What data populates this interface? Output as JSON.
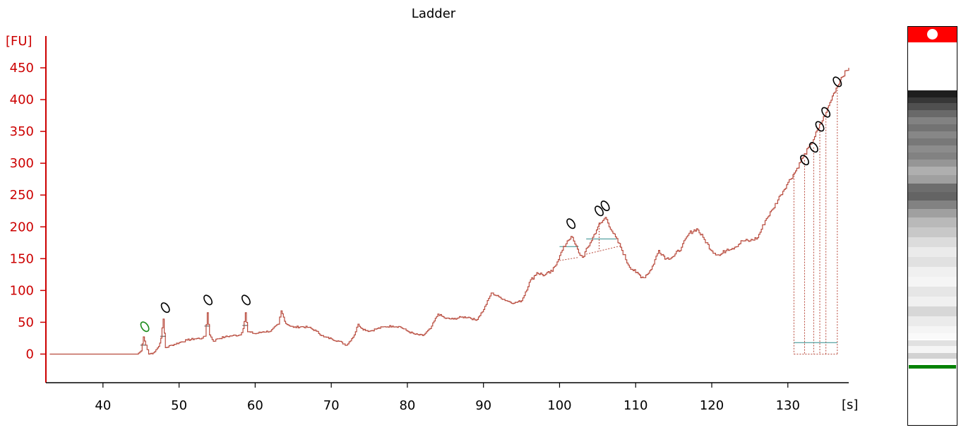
{
  "chart_data": {
    "type": "line",
    "title": "Ladder",
    "ylabel": "[FU]",
    "xlabel": "[s]",
    "xlim": [
      32.5,
      138
    ],
    "ylim": [
      -45,
      500
    ],
    "yticks": [
      0,
      50,
      100,
      150,
      200,
      250,
      300,
      350,
      400,
      450
    ],
    "xticks": [
      40,
      50,
      60,
      70,
      80,
      90,
      100,
      110,
      120,
      130
    ],
    "trace": [
      [
        33,
        0
      ],
      [
        44.5,
        0
      ],
      [
        45,
        5
      ],
      [
        45.3,
        27
      ],
      [
        45.6,
        14
      ],
      [
        46,
        0
      ],
      [
        46.6,
        2
      ],
      [
        47.3,
        12
      ],
      [
        47.6,
        25
      ],
      [
        47.9,
        55
      ],
      [
        48.2,
        10
      ],
      [
        49,
        14
      ],
      [
        50,
        18
      ],
      [
        51,
        22
      ],
      [
        52,
        24
      ],
      [
        53,
        25
      ],
      [
        53.4,
        28
      ],
      [
        53.7,
        65
      ],
      [
        54,
        30
      ],
      [
        54.5,
        20
      ],
      [
        55,
        24
      ],
      [
        56,
        27
      ],
      [
        57,
        29
      ],
      [
        58,
        30
      ],
      [
        58.4,
        40
      ],
      [
        58.7,
        65
      ],
      [
        59,
        35
      ],
      [
        60,
        32
      ],
      [
        61,
        35
      ],
      [
        62,
        36
      ],
      [
        63,
        47
      ],
      [
        63.4,
        68
      ],
      [
        64,
        48
      ],
      [
        65,
        42
      ],
      [
        66,
        43
      ],
      [
        67,
        42
      ],
      [
        68,
        36
      ],
      [
        69,
        27
      ],
      [
        70,
        24
      ],
      [
        71,
        20
      ],
      [
        72,
        14
      ],
      [
        73,
        30
      ],
      [
        73.5,
        47
      ],
      [
        74,
        40
      ],
      [
        75,
        36
      ],
      [
        76,
        40
      ],
      [
        77,
        43
      ],
      [
        78,
        44
      ],
      [
        79,
        43
      ],
      [
        80,
        36
      ],
      [
        81,
        31
      ],
      [
        82,
        29
      ],
      [
        83,
        40
      ],
      [
        84,
        63
      ],
      [
        85,
        56
      ],
      [
        86,
        55
      ],
      [
        87,
        58
      ],
      [
        88,
        58
      ],
      [
        89,
        53
      ],
      [
        90,
        70
      ],
      [
        91,
        96
      ],
      [
        92,
        90
      ],
      [
        93,
        84
      ],
      [
        94,
        80
      ],
      [
        95,
        84
      ],
      [
        96,
        113
      ],
      [
        97,
        128
      ],
      [
        98,
        124
      ],
      [
        99,
        130
      ],
      [
        100,
        155
      ],
      [
        101,
        178
      ],
      [
        101.5,
        185
      ],
      [
        102,
        173
      ],
      [
        102.5,
        159
      ],
      [
        103,
        152
      ],
      [
        104,
        175
      ],
      [
        105,
        200
      ],
      [
        105.5,
        207
      ],
      [
        106,
        215
      ],
      [
        107,
        190
      ],
      [
        108,
        168
      ],
      [
        109,
        140
      ],
      [
        110,
        128
      ],
      [
        111,
        120
      ],
      [
        112,
        133
      ],
      [
        113,
        163
      ],
      [
        114,
        150
      ],
      [
        115,
        154
      ],
      [
        116,
        168
      ],
      [
        117,
        190
      ],
      [
        118,
        197
      ],
      [
        119,
        180
      ],
      [
        120,
        162
      ],
      [
        121,
        155
      ],
      [
        122,
        165
      ],
      [
        123,
        168
      ],
      [
        124,
        178
      ],
      [
        125,
        178
      ],
      [
        126,
        183
      ],
      [
        127,
        210
      ],
      [
        128,
        228
      ],
      [
        129,
        250
      ],
      [
        130,
        270
      ],
      [
        131,
        288
      ],
      [
        132,
        310
      ],
      [
        133,
        330
      ],
      [
        134,
        355
      ],
      [
        135,
        380
      ],
      [
        136,
        410
      ],
      [
        137,
        435
      ],
      [
        138,
        450
      ]
    ],
    "peak_markers": [
      {
        "x": 45.5,
        "y": 43,
        "color": "green"
      },
      {
        "x": 48.2,
        "y": 73,
        "color": "black"
      },
      {
        "x": 53.8,
        "y": 85,
        "color": "black"
      },
      {
        "x": 58.8,
        "y": 85,
        "color": "black"
      },
      {
        "x": 101.5,
        "y": 205,
        "color": "black"
      },
      {
        "x": 105.2,
        "y": 225,
        "color": "black"
      },
      {
        "x": 106,
        "y": 233,
        "color": "black"
      },
      {
        "x": 132.2,
        "y": 305,
        "color": "black"
      },
      {
        "x": 133.4,
        "y": 325,
        "color": "black"
      },
      {
        "x": 134.2,
        "y": 358,
        "color": "black"
      },
      {
        "x": 135,
        "y": 380,
        "color": "black"
      },
      {
        "x": 136.5,
        "y": 428,
        "color": "black"
      }
    ]
  },
  "gel": {
    "marker_color": "#ff0000",
    "lower_marker_color": "#008000"
  },
  "colors": {
    "trace": "#b84a3c",
    "axis": "#cc0000",
    "baseline": "#2e8b8b"
  }
}
